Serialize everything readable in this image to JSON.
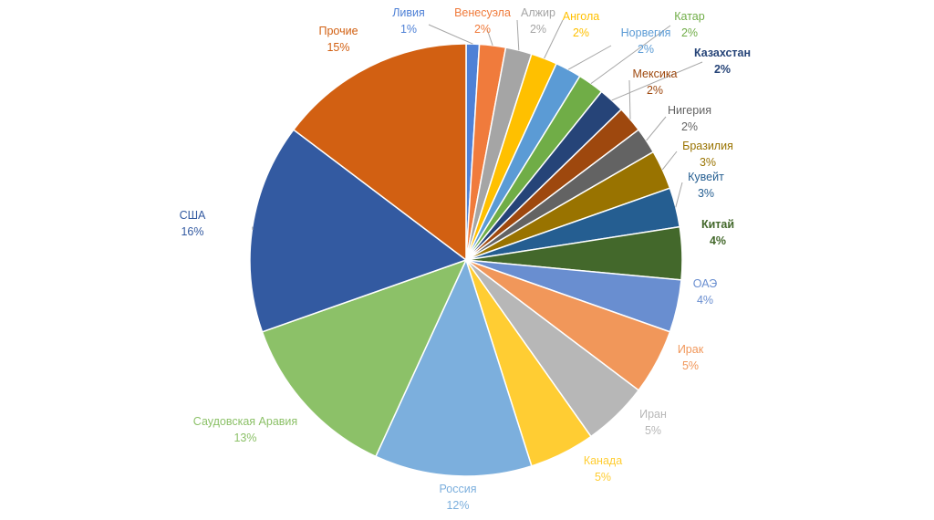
{
  "chart_data": {
    "type": "pie",
    "title": "",
    "value_unit": "%",
    "slices": [
      {
        "label": "Ливия",
        "value": 1,
        "value_text": "1%",
        "color": "#4f81d6",
        "bold": false
      },
      {
        "label": "Венесуэла",
        "value": 2,
        "value_text": "2%",
        "color": "#f07b3c",
        "bold": false
      },
      {
        "label": "Алжир",
        "value": 2,
        "value_text": "2%",
        "color": "#a5a5a5",
        "bold": false
      },
      {
        "label": "Ангола",
        "value": 2,
        "value_text": "2%",
        "color": "#ffc000",
        "bold": false
      },
      {
        "label": "Норвегия",
        "value": 2,
        "value_text": "2%",
        "color": "#5b9bd5",
        "bold": false
      },
      {
        "label": "Катар",
        "value": 2,
        "value_text": "2%",
        "color": "#70ad47",
        "bold": false
      },
      {
        "label": "Казахстан",
        "value": 2,
        "value_text": "2%",
        "color": "#264478",
        "bold": true
      },
      {
        "label": "Мексика",
        "value": 2,
        "value_text": "2%",
        "color": "#9e480e",
        "bold": false
      },
      {
        "label": "Нигерия",
        "value": 2,
        "value_text": "2%",
        "color": "#636363",
        "bold": false
      },
      {
        "label": "Бразилия",
        "value": 3,
        "value_text": "3%",
        "color": "#997300",
        "bold": false
      },
      {
        "label": "Кувейт",
        "value": 3,
        "value_text": "3%",
        "color": "#255e91",
        "bold": false
      },
      {
        "label": "Китай",
        "value": 4,
        "value_text": "4%",
        "color": "#43682b",
        "bold": true
      },
      {
        "label": "ОАЭ",
        "value": 4,
        "value_text": "4%",
        "color": "#698ed0",
        "bold": false
      },
      {
        "label": "Ирак",
        "value": 5,
        "value_text": "5%",
        "color": "#f1975a",
        "bold": false
      },
      {
        "label": "Иран",
        "value": 5,
        "value_text": "5%",
        "color": "#b7b7b7",
        "bold": false
      },
      {
        "label": "Канада",
        "value": 5,
        "value_text": "5%",
        "color": "#ffcd33",
        "bold": false
      },
      {
        "label": "Россия",
        "value": 12,
        "value_text": "12%",
        "color": "#7cafdd",
        "bold": false
      },
      {
        "label": "Саудовская Аравия",
        "value": 13,
        "value_text": "13%",
        "color": "#8cc168",
        "bold": false
      },
      {
        "label": "США",
        "value": 16,
        "value_text": "16%",
        "color": "#335aa1",
        "bold": false
      },
      {
        "label": "Прочие",
        "value": 15,
        "value_text": "15%",
        "color": "#d26012",
        "bold": false
      }
    ]
  }
}
